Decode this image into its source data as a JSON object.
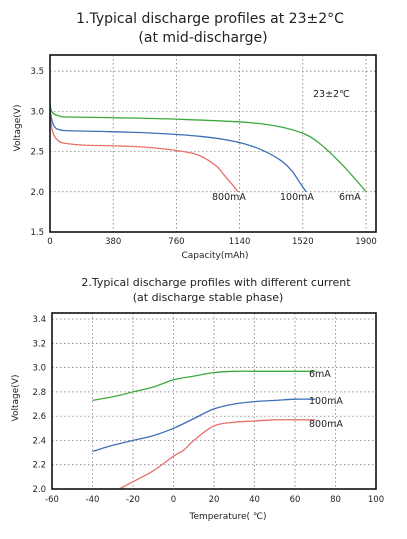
{
  "chart_data": [
    {
      "type": "line",
      "title": "1.Typical discharge profiles at 23±2°C",
      "subtitle": "(at mid-discharge)",
      "xlabel": "Capacity(mAh)",
      "ylabel": "Voltage(V)",
      "xlim": [
        0,
        1960
      ],
      "ylim": [
        1.5,
        3.7
      ],
      "x_ticks": [
        "0",
        "380",
        "760",
        "1140",
        "1520",
        "1900"
      ],
      "y_ticks": [
        "1.5",
        "2.0",
        "2.5",
        "3.0",
        "3.5"
      ],
      "annotation": "23±2℃",
      "grid": true,
      "series": [
        {
          "name": "800mA",
          "color": "#e8706c",
          "x": [
            0,
            10,
            30,
            60,
            100,
            200,
            400,
            600,
            800,
            900,
            1000,
            1050,
            1100,
            1130
          ],
          "y": [
            3.02,
            2.8,
            2.68,
            2.62,
            2.6,
            2.58,
            2.57,
            2.55,
            2.5,
            2.45,
            2.32,
            2.2,
            2.08,
            2.0
          ]
        },
        {
          "name": "100mA",
          "color": "#3d6fb5",
          "x": [
            0,
            10,
            30,
            60,
            100,
            300,
            600,
            900,
            1100,
            1250,
            1380,
            1450,
            1500,
            1540
          ],
          "y": [
            3.05,
            2.9,
            2.8,
            2.77,
            2.76,
            2.75,
            2.73,
            2.69,
            2.63,
            2.54,
            2.4,
            2.27,
            2.12,
            2.0
          ]
        },
        {
          "name": "6mA",
          "color": "#3caa3c",
          "x": [
            0,
            10,
            30,
            60,
            100,
            400,
            800,
            1200,
            1400,
            1550,
            1650,
            1750,
            1830,
            1900
          ],
          "y": [
            3.08,
            3.0,
            2.96,
            2.94,
            2.93,
            2.92,
            2.9,
            2.86,
            2.8,
            2.7,
            2.55,
            2.35,
            2.17,
            2.0
          ]
        }
      ]
    },
    {
      "type": "line",
      "title": "2.Typical discharge profiles with different current",
      "subtitle": "(at discharge stable phase)",
      "xlabel": "Temperature( ℃)",
      "ylabel": "Voltage(V)",
      "xlim": [
        -60,
        100
      ],
      "ylim": [
        2.0,
        3.45
      ],
      "x_ticks": [
        "-60",
        "-40",
        "-20",
        "0",
        "20",
        "40",
        "60",
        "80",
        "100"
      ],
      "y_ticks": [
        "2.0",
        "2.2",
        "2.4",
        "2.6",
        "2.8",
        "3.0",
        "3.2",
        "3.4"
      ],
      "grid": true,
      "series": [
        {
          "name": "6mA",
          "color": "#3caa3c",
          "x": [
            -40,
            -30,
            -20,
            -10,
            0,
            10,
            20,
            30,
            40,
            50,
            60,
            70
          ],
          "y": [
            2.73,
            2.76,
            2.8,
            2.84,
            2.9,
            2.93,
            2.96,
            2.97,
            2.97,
            2.97,
            2.97,
            2.97
          ]
        },
        {
          "name": "100mA",
          "color": "#3d6fb5",
          "x": [
            -40,
            -30,
            -20,
            -10,
            0,
            10,
            20,
            30,
            40,
            50,
            60,
            70
          ],
          "y": [
            2.31,
            2.36,
            2.4,
            2.44,
            2.5,
            2.58,
            2.66,
            2.7,
            2.72,
            2.73,
            2.74,
            2.74
          ]
        },
        {
          "name": "800mA",
          "color": "#e8706c",
          "x": [
            -27,
            -20,
            -10,
            0,
            5,
            10,
            20,
            30,
            40,
            50,
            60,
            70
          ],
          "y": [
            2.0,
            2.06,
            2.15,
            2.27,
            2.32,
            2.4,
            2.52,
            2.55,
            2.56,
            2.57,
            2.57,
            2.57
          ]
        }
      ]
    }
  ]
}
